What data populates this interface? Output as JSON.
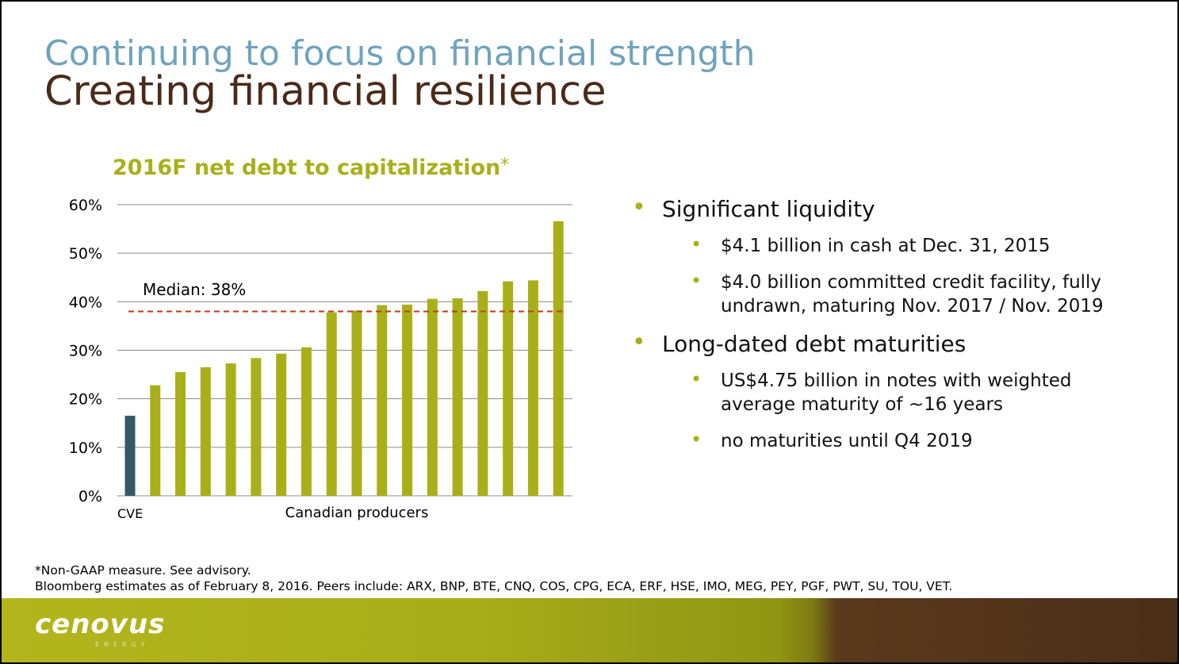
{
  "slide": {
    "title_line1": "Continuing to focus on financial strength",
    "title_line2": "Creating financial resilience"
  },
  "chart_title": "2016F net debt to capitalization",
  "chart_title_mark": "*",
  "chart_data": {
    "type": "bar",
    "title": "2016F net debt to capitalization*",
    "categories": [
      "CVE",
      "",
      "",
      "",
      "",
      "",
      "",
      "",
      "",
      "",
      "",
      "",
      "",
      "",
      "",
      "",
      "",
      ""
    ],
    "values": [
      16.5,
      22.8,
      25.5,
      26.5,
      27.3,
      28.4,
      29.3,
      30.6,
      37.8,
      38.2,
      39.3,
      39.4,
      40.6,
      40.7,
      42.2,
      44.2,
      44.4,
      56.6
    ],
    "highlight_color": "#325a64",
    "bar_color": "#a8b019",
    "ylim": [
      0,
      60
    ],
    "yticks": [
      "0%",
      "10%",
      "20%",
      "30%",
      "40%",
      "50%",
      "60%"
    ],
    "ytick_values": [
      0,
      10,
      20,
      30,
      40,
      50,
      60
    ],
    "x_label_first": "CVE",
    "x_group_label": "Canadian producers",
    "median": {
      "value": 38,
      "label": "Median: 38%",
      "color": "#c0421b"
    },
    "grid": true
  },
  "bullets": [
    {
      "text": "Significant liquidity",
      "sub": [
        "$4.1 billion in cash at Dec. 31, 2015",
        "$4.0 billion committed credit facility, fully undrawn, maturing Nov. 2017 / Nov. 2019"
      ]
    },
    {
      "text": "Long-dated debt maturities",
      "sub": [
        "US$4.75 billion in notes with weighted average maturity of ~16 years",
        "no maturities until Q4 2019"
      ]
    }
  ],
  "footnote": {
    "line1": "*Non-GAAP measure. See advisory.",
    "line2": "Bloomberg estimates as of February 8, 2016. Peers include: ARX, BNP, BTE, CNQ, COS, CPG, ECA, ERF, HSE, IMO, MEG, PEY, PGF, PWT, SU, TOU, VET."
  },
  "logo": {
    "text": "cenovus",
    "subtext": "ENERGY"
  }
}
